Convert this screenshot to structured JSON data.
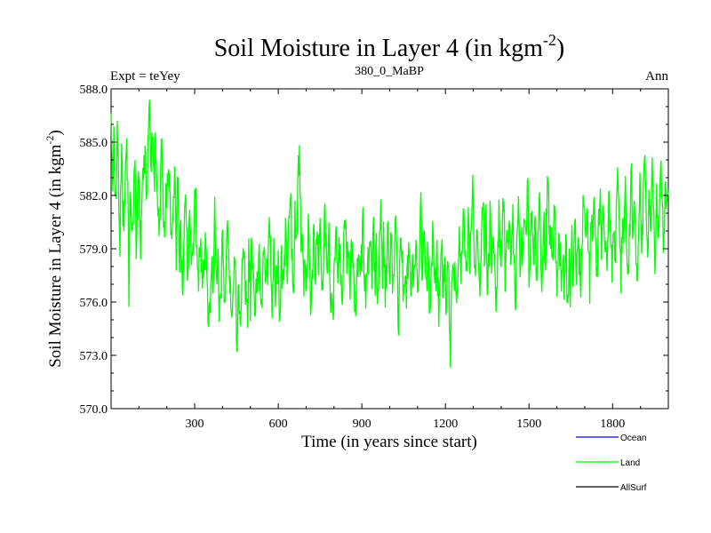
{
  "chart_data": {
    "type": "line",
    "title": "Soil Moisture in Layer 4 (in kgm",
    "title_sup": "-2",
    "title_close": ")",
    "left_label": "Expt = teYey",
    "subtitle": "380_0_MaBP",
    "right_label": "Ann",
    "xlabel": "Time (in years since start)",
    "ylabel": "Soil Moisture in Layer 4 (in kgm",
    "ylabel_sup": "-2",
    "ylabel_close": ")",
    "xlim": [
      0,
      2000
    ],
    "ylim": [
      570,
      588
    ],
    "xticks": [
      300,
      600,
      900,
      1200,
      1500,
      1800
    ],
    "xtick_labels": [
      "300",
      "600",
      "900",
      "1200",
      "1500",
      "1800"
    ],
    "yticks": [
      570,
      573,
      576,
      579,
      582,
      585,
      588
    ],
    "ytick_labels": [
      "570.0",
      "573.0",
      "576.0",
      "579.0",
      "582.0",
      "585.0",
      "588.0"
    ],
    "legend": [
      {
        "name": "Ocean",
        "color": "#0000ff"
      },
      {
        "name": "Land",
        "color": "#00ff00"
      },
      {
        "name": "AllSurf",
        "color": "#000000"
      }
    ],
    "series": [
      {
        "name": "Land",
        "color": "#00ff00",
        "x_start": 0,
        "x_end": 2000,
        "values": [
          587.5,
          583.0,
          585.6,
          581.0,
          585.2,
          583.2,
          579.6,
          584.5,
          580.4,
          581.6,
          585.0,
          583.8,
          576.7,
          582.9,
          579.1,
          581.4,
          583.7,
          578.9,
          582.4,
          581.8,
          579.2,
          583.6,
          583.1,
          584.8,
          581.4,
          585.3,
          587.0,
          584.1,
          586.4,
          582.5,
          585.2,
          583.1,
          580.0,
          581.6,
          584.6,
          582.0,
          579.4,
          581.8,
          582.9,
          584.2,
          581.3,
          580.2,
          581.0,
          582.7,
          578.8,
          583.3,
          577.6,
          580.0,
          576.9,
          578.4,
          581.9,
          579.7,
          577.0,
          581.3,
          579.2,
          578.7,
          580.5,
          582.0,
          578.6,
          576.8,
          580.0,
          576.9,
          577.4,
          578.5,
          580.0,
          575.8,
          574.4,
          576.8,
          578.5,
          577.3,
          581.0,
          576.6,
          578.4,
          575.3,
          575.9,
          579.3,
          577.0,
          574.9,
          580.7,
          578.6,
          577.8,
          574.8,
          576.3,
          577.9,
          578.1,
          572.2,
          576.9,
          573.8,
          577.3,
          579.1,
          578.2,
          576.3,
          575.0,
          578.9,
          576.1,
          580.3,
          577.2,
          575.2,
          577.8,
          576.8,
          579.7,
          574.9,
          576.3,
          578.7,
          577.3,
          576.9,
          578.8,
          580.8,
          577.1,
          575.8,
          579.5,
          576.4,
          578.2,
          577.6,
          574.6,
          579.0,
          576.4,
          578.2,
          580.4,
          577.1,
          579.8,
          582.7,
          578.6,
          576.4,
          580.6,
          578.9,
          582.3,
          585.1,
          579.7,
          581.1,
          576.0,
          578.9,
          577.2,
          580.5,
          577.1,
          575.3,
          578.4,
          579.8,
          576.8,
          581.6,
          578.0,
          580.3,
          577.6,
          576.2,
          582.1,
          579.5,
          576.6,
          579.8,
          576.2,
          577.9,
          575.4,
          578.8,
          580.4,
          577.1,
          579.3,
          577.5,
          574.8,
          578.7,
          581.1,
          577.3,
          579.5,
          576.4,
          578.2,
          579.6,
          577.0,
          574.9,
          577.7,
          579.3,
          576.8,
          578.5,
          580.3,
          577.6,
          575.4,
          578.9,
          577.3,
          579.6,
          576.9,
          580.4,
          577.2,
          578.8,
          575.6,
          578.4,
          581.8,
          577.4,
          579.9,
          576.1,
          578.6,
          580.7,
          577.8,
          579.0,
          576.5,
          578.2,
          580.1,
          577.4,
          574.4,
          578.6,
          579.9,
          577.1,
          578.3,
          576.2,
          577.8,
          579.5,
          577.0,
          578.4,
          576.4,
          579.3,
          577.9,
          575.4,
          578.6,
          582.3,
          576.8,
          579.4,
          577.5,
          576.3,
          579.8,
          575.1,
          577.6,
          579.5,
          578.3,
          576.7,
          578.4,
          575.2,
          577.8,
          579.2,
          576.9,
          578.1,
          575.6,
          578.7,
          576.3,
          573.0,
          577.6,
          579.1,
          577.0,
          575.8,
          578.4,
          580.6,
          577.2,
          579.6,
          581.3,
          578.5,
          577.1,
          580.2,
          578.0,
          579.8,
          582.3,
          578.6,
          576.5,
          580.1,
          578.8,
          576.3,
          579.5,
          581.7,
          577.9,
          580.5,
          576.6,
          578.9,
          582.1,
          577.4,
          580.3,
          578.2,
          576.0,
          579.4,
          581.6,
          578.0,
          580.0,
          583.0,
          576.7,
          579.6,
          578.4,
          581.5,
          577.8,
          580.7,
          578.5,
          575.3,
          579.9,
          582.8,
          578.1,
          580.4,
          577.6,
          580.9,
          578.7,
          584.0,
          576.9,
          579.8,
          582.1,
          578.3,
          581.0,
          577.4,
          579.6,
          582.6,
          578.8,
          576.4,
          580.5,
          578.2,
          581.3,
          583.5,
          578.9,
          580.2,
          577.5,
          581.4,
          579.0,
          576.8,
          580.1,
          578.6,
          575.9,
          578.9,
          576.5,
          579.4,
          574.7,
          578.3,
          576.0,
          579.8,
          577.2,
          581.0,
          577.7,
          580.3,
          578.5,
          576.3,
          580.1,
          582.4,
          578.7,
          581.5,
          579.1,
          577.0,
          580.8,
          578.4,
          581.9,
          579.5,
          577.2,
          580.6,
          583.1,
          578.9,
          581.6,
          577.8,
          580.0,
          578.3,
          582.6,
          579.7,
          577.6,
          580.9,
          578.1,
          581.7,
          584.0,
          579.4,
          577.5,
          580.6,
          578.8,
          582.3,
          579.0,
          576.9,
          580.4,
          583.5,
          578.6,
          581.2,
          579.8,
          577.1,
          580.5,
          582.8,
          579.1,
          581.4,
          584.3,
          580.2,
          578.0,
          581.8,
          579.6,
          583.1,
          580.7,
          578.4,
          582.0,
          579.5,
          581.6,
          583.7,
          580.3,
          578.9,
          582.4,
          580.1,
          581.9
        ],
        "noise_seed": 20240
      }
    ]
  }
}
